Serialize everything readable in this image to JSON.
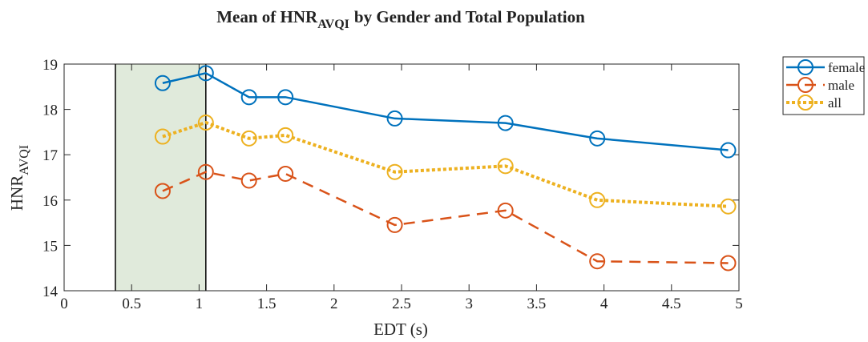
{
  "chart_data": {
    "type": "line",
    "title": {
      "main": "Mean of HNR",
      "subscript": "AVQI",
      "rest": "by Gender and Total Population"
    },
    "x_label": "EDT (s)",
    "y_label": {
      "main": "HNR",
      "subscript": "AVQI"
    },
    "x": [
      0.73,
      1.05,
      1.37,
      1.64,
      2.45,
      3.27,
      3.95,
      4.92
    ],
    "series": [
      {
        "name": "female",
        "color": "#0072bd",
        "linestyle": "solid",
        "values": [
          18.58,
          18.8,
          18.27,
          18.27,
          17.8,
          17.7,
          17.36,
          17.1
        ]
      },
      {
        "name": "male",
        "color": "#d95319",
        "linestyle": "dashed",
        "values": [
          16.2,
          16.62,
          16.43,
          16.58,
          15.45,
          15.77,
          14.65,
          14.61
        ]
      },
      {
        "name": "all",
        "color": "#edb120",
        "linestyle": "dotted",
        "values": [
          17.4,
          17.71,
          17.36,
          17.43,
          16.62,
          16.75,
          16.0,
          15.86
        ]
      }
    ],
    "xlim": [
      0,
      5
    ],
    "ylim": [
      14,
      19
    ],
    "xticks": [
      0,
      0.5,
      1,
      1.5,
      2,
      2.5,
      3,
      3.5,
      4,
      4.5,
      5
    ],
    "yticks": [
      14,
      15,
      16,
      17,
      18,
      19
    ],
    "shaded_region": {
      "x": [
        0.38,
        1.05
      ],
      "color": "#e0eadb"
    },
    "legend": "outside-top-right",
    "grid": false
  }
}
